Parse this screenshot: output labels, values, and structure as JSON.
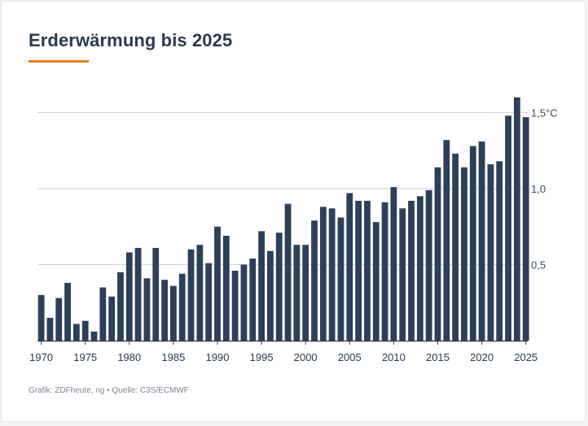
{
  "title": "Erderwärmung bis 2025",
  "accent_color": "#f07c1c",
  "bar_color": "#2d4059",
  "source": "Grafik: ZDFheute, ng • Quelle: C3S/ECMWF",
  "chart_data": {
    "type": "bar",
    "title": "Erderwärmung bis 2025",
    "xlabel": "",
    "ylabel": "",
    "ylim": [
      0,
      1.5
    ],
    "grid": true,
    "y_ticks": [
      {
        "value": 0.5,
        "label": "0,5"
      },
      {
        "value": 1.0,
        "label": "1,0"
      },
      {
        "value": 1.5,
        "label": "1,5°C"
      }
    ],
    "x_tick_labels": [
      "1970",
      "1975",
      "1980",
      "1985",
      "1990",
      "1995",
      "2000",
      "2005",
      "2010",
      "2015",
      "2020",
      "2025"
    ],
    "categories": [
      1970,
      1971,
      1972,
      1973,
      1974,
      1975,
      1976,
      1977,
      1978,
      1979,
      1980,
      1981,
      1982,
      1983,
      1984,
      1985,
      1986,
      1987,
      1988,
      1989,
      1990,
      1991,
      1992,
      1993,
      1994,
      1995,
      1996,
      1997,
      1998,
      1999,
      2000,
      2001,
      2002,
      2003,
      2004,
      2005,
      2006,
      2007,
      2008,
      2009,
      2010,
      2011,
      2012,
      2013,
      2014,
      2015,
      2016,
      2017,
      2018,
      2019,
      2020,
      2021,
      2022,
      2023,
      2024,
      2025
    ],
    "values": [
      0.3,
      0.15,
      0.28,
      0.38,
      0.11,
      0.13,
      0.06,
      0.35,
      0.29,
      0.45,
      0.58,
      0.61,
      0.41,
      0.61,
      0.4,
      0.36,
      0.44,
      0.6,
      0.63,
      0.51,
      0.75,
      0.69,
      0.46,
      0.5,
      0.54,
      0.72,
      0.59,
      0.71,
      0.9,
      0.63,
      0.63,
      0.79,
      0.88,
      0.87,
      0.81,
      0.97,
      0.92,
      0.92,
      0.78,
      0.91,
      1.01,
      0.87,
      0.92,
      0.95,
      0.99,
      1.14,
      1.32,
      1.23,
      1.14,
      1.28,
      1.31,
      1.16,
      1.18,
      1.48,
      1.6,
      1.47
    ]
  }
}
